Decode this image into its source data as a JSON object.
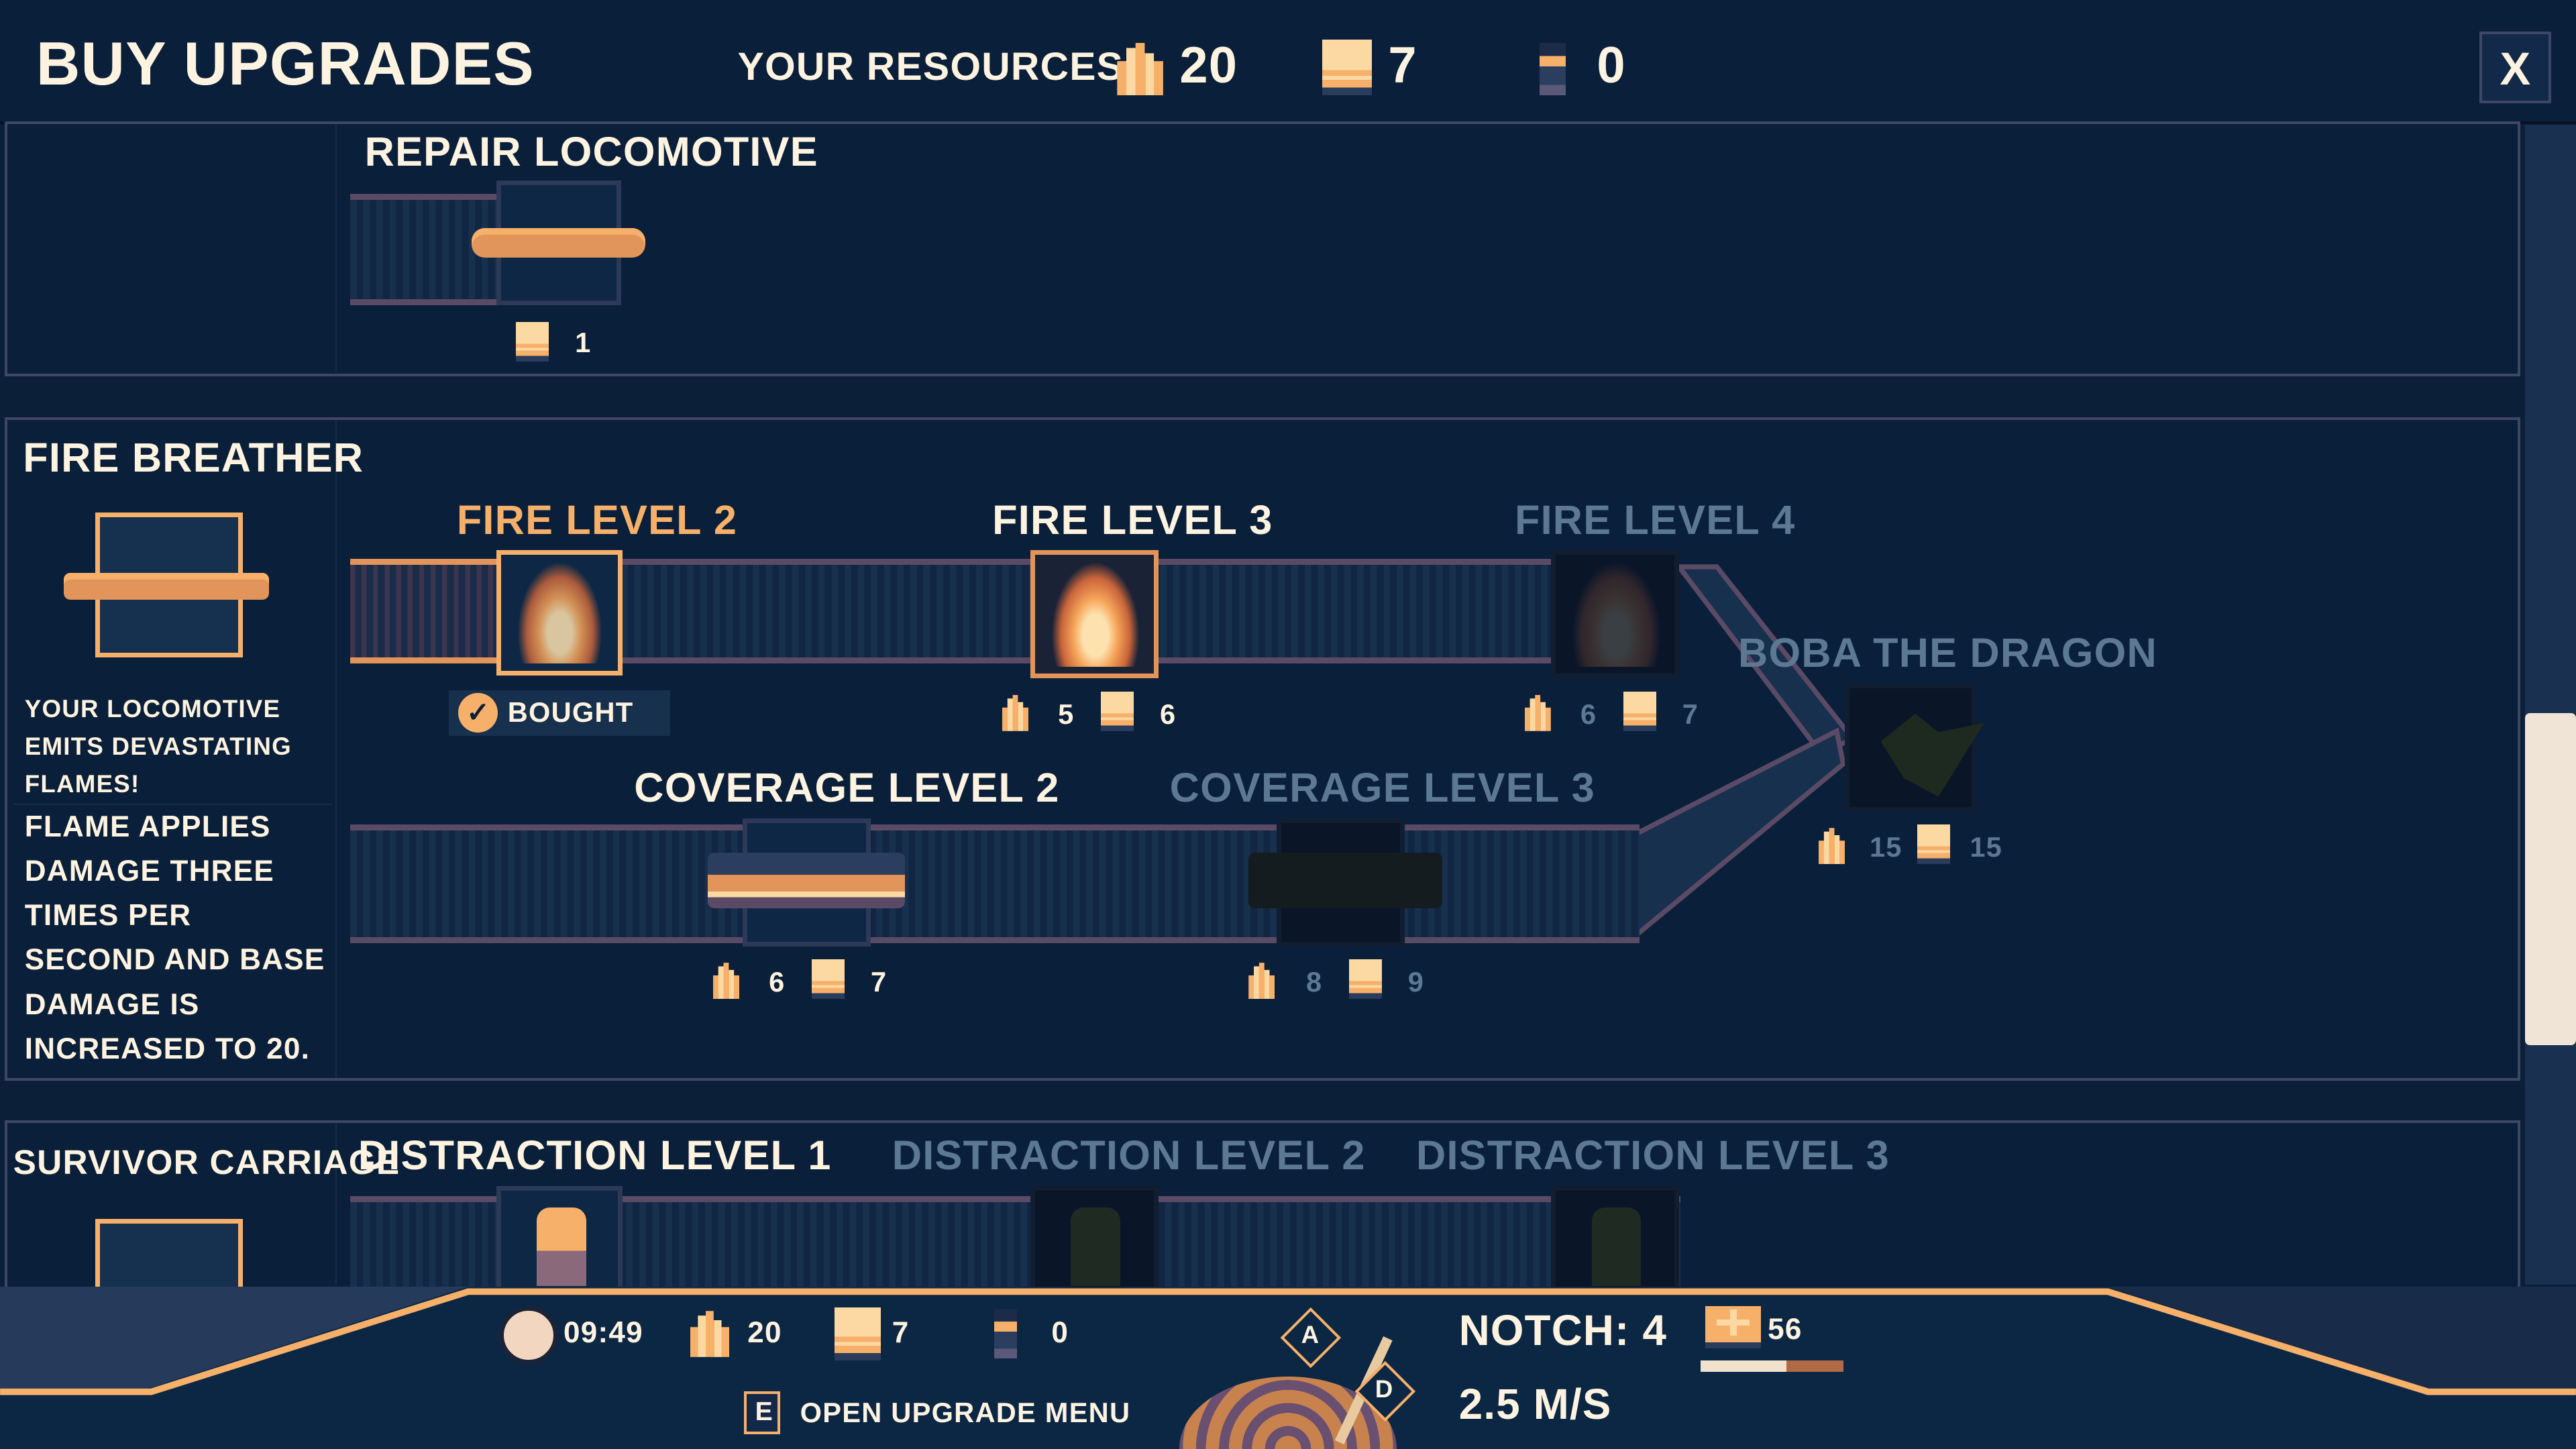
{
  "header": {
    "title": "BUY UPGRADES",
    "resources_label": "YOUR RESOURCES",
    "fuel": "20",
    "wood": "7",
    "survivors": "0",
    "close_label": "X"
  },
  "sections": [
    {
      "name": "",
      "nodes": [
        {
          "label": "REPAIR LOCOMOTIVE",
          "icon": "wrench-icon",
          "cost_wood": "1"
        }
      ]
    },
    {
      "name": "FIRE BREATHER",
      "desc1": "YOUR LOCOMOTIVE EMITS DEVASTATING FLAMES!",
      "desc2": "FLAME APPLIES DAMAGE THREE TIMES PER SECOND AND BASE DAMAGE IS INCREASED TO 20.",
      "nodes": [
        {
          "label": "FIRE LEVEL 2",
          "icon": "flame-icon",
          "status": "BOUGHT"
        },
        {
          "label": "FIRE LEVEL 3",
          "icon": "flame-icon",
          "cost_fuel": "5",
          "cost_wood": "6"
        },
        {
          "label": "FIRE LEVEL 4",
          "icon": "flame-icon",
          "cost_fuel": "6",
          "cost_wood": "7",
          "locked": true
        },
        {
          "label": "BOBA THE DRAGON",
          "icon": "dragon-icon",
          "cost_fuel": "15",
          "cost_wood": "15",
          "locked": true
        },
        {
          "label": "COVERAGE LEVEL 2",
          "icon": "train-icon",
          "cost_fuel": "6",
          "cost_wood": "7"
        },
        {
          "label": "COVERAGE LEVEL 3",
          "icon": "train-icon",
          "cost_fuel": "8",
          "cost_wood": "9",
          "locked": true
        }
      ]
    },
    {
      "name": "SURVIVOR CARRIAGE",
      "nodes": [
        {
          "label": "DISTRACTION LEVEL 1",
          "icon": "lantern-icon"
        },
        {
          "label": "DISTRACTION LEVEL 2",
          "icon": "lantern-icon",
          "locked": true
        },
        {
          "label": "DISTRACTION LEVEL 3",
          "icon": "lantern-icon",
          "locked": true
        }
      ]
    }
  ],
  "scrollbar": {
    "position_percent": 50
  },
  "hud": {
    "time": "09:49",
    "fuel": "20",
    "wood": "7",
    "survivors": "0",
    "key": "E",
    "open_menu_label": "OPEN UPGRADE MENU",
    "key_left": "A",
    "key_right": "D",
    "notch": "NOTCH: 4",
    "speed": "2.5 M/S",
    "health": "56",
    "health_fraction": 0.6
  },
  "colors": {
    "background": "#0b1f38",
    "accent": "#f6b06a",
    "text": "#fdf3e0",
    "locked_text": "#5d7893"
  }
}
